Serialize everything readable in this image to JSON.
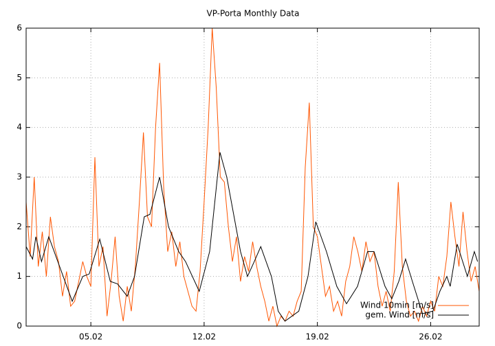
{
  "chart_data": {
    "type": "line",
    "title": "VP-Porta Monthly Data",
    "xlim": [
      1,
      29
    ],
    "ylim": [
      0,
      6
    ],
    "xticks": [
      {
        "value": 5,
        "label": "05.02"
      },
      {
        "value": 12,
        "label": "12.02"
      },
      {
        "value": 19,
        "label": "19.02"
      },
      {
        "value": 26,
        "label": "26.02"
      }
    ],
    "yticks": [
      0,
      1,
      2,
      3,
      4,
      5,
      6
    ],
    "grid": true,
    "legend": "bottom-right",
    "series": [
      {
        "name": "Wind 10min [m/s]",
        "color": "#ff5500",
        "x": [
          1,
          1.25,
          1.5,
          1.75,
          2,
          2.25,
          2.5,
          2.75,
          3,
          3.25,
          3.5,
          3.75,
          4,
          4.25,
          4.5,
          4.75,
          5,
          5.25,
          5.5,
          5.75,
          6,
          6.25,
          6.5,
          6.75,
          7,
          7.25,
          7.5,
          7.75,
          8,
          8.25,
          8.5,
          8.75,
          9,
          9.25,
          9.5,
          9.75,
          10,
          10.25,
          10.5,
          10.75,
          11,
          11.25,
          11.5,
          11.75,
          12,
          12.25,
          12.5,
          12.75,
          13,
          13.25,
          13.5,
          13.75,
          14,
          14.25,
          14.5,
          14.75,
          15,
          15.25,
          15.5,
          15.75,
          16,
          16.25,
          16.5,
          16.75,
          17,
          17.25,
          17.5,
          17.75,
          18,
          18.25,
          18.5,
          18.75,
          19,
          19.25,
          19.5,
          19.75,
          20,
          20.25,
          20.5,
          20.75,
          21,
          21.25,
          21.5,
          21.75,
          22,
          22.25,
          22.5,
          22.75,
          23,
          23.25,
          23.5,
          23.75,
          24,
          24.25,
          24.5,
          24.75,
          25,
          25.25,
          25.5,
          25.75,
          26,
          26.25,
          26.5,
          26.75,
          27,
          27.25,
          27.5,
          27.75,
          28,
          28.25,
          28.5,
          28.75,
          29
        ],
        "values": [
          2.5,
          1.4,
          3.0,
          1.2,
          1.9,
          1.0,
          2.2,
          1.6,
          1.3,
          0.6,
          1.1,
          0.4,
          0.5,
          0.9,
          1.3,
          1.0,
          0.8,
          3.4,
          1.2,
          1.6,
          0.2,
          0.9,
          1.8,
          0.6,
          0.1,
          0.8,
          0.3,
          1.2,
          2.5,
          3.9,
          2.2,
          2.0,
          4.0,
          5.3,
          2.8,
          1.5,
          1.9,
          1.2,
          1.7,
          1.0,
          0.7,
          0.4,
          0.3,
          1.1,
          2.5,
          4.0,
          6.0,
          4.8,
          3.0,
          2.9,
          2.0,
          1.3,
          1.8,
          0.9,
          1.4,
          1.1,
          1.7,
          1.2,
          0.8,
          0.5,
          0.1,
          0.4,
          0.0,
          0.2,
          0.1,
          0.3,
          0.2,
          0.5,
          0.7,
          3.2,
          4.5,
          2.0,
          1.8,
          1.2,
          0.6,
          0.8,
          0.3,
          0.5,
          0.2,
          0.9,
          1.2,
          1.8,
          1.5,
          1.1,
          1.7,
          1.3,
          1.5,
          0.8,
          0.4,
          0.7,
          0.3,
          1.1,
          2.9,
          1.2,
          0.5,
          0.2,
          0.3,
          0.1,
          0.4,
          0.2,
          0.5,
          0.3,
          1.0,
          0.8,
          1.4,
          2.5,
          1.8,
          1.2,
          2.3,
          1.5,
          0.9,
          1.2,
          0.7
        ]
      },
      {
        "name": "gem. Wind [m/s]",
        "color": "#000000",
        "x": [
          1,
          1.4,
          1.6,
          1.95,
          2.4,
          3.85,
          4.5,
          4.9,
          5.55,
          6.2,
          6.65,
          7.25,
          7.7,
          8.3,
          8.65,
          9.25,
          9.8,
          10.43,
          10.85,
          11.7,
          12.34,
          12.98,
          13.4,
          14.25,
          14.68,
          15.1,
          15.5,
          16.16,
          16.58,
          17.0,
          17.85,
          18.42,
          18.9,
          19.56,
          20.2,
          20.8,
          21.48,
          22.1,
          22.5,
          23.18,
          23.6,
          24.03,
          24.45,
          24.87,
          25.5,
          26.14,
          26.57,
          27.0,
          27.21,
          27.64,
          28.27,
          28.7,
          28.9
        ],
        "values": [
          1.6,
          1.35,
          1.8,
          1.3,
          1.8,
          0.5,
          1.0,
          1.05,
          1.75,
          0.9,
          0.85,
          0.6,
          1.0,
          2.2,
          2.25,
          3.0,
          2.0,
          1.5,
          1.3,
          0.7,
          1.5,
          3.5,
          3.0,
          1.5,
          1.0,
          1.3,
          1.6,
          1.0,
          0.3,
          0.1,
          0.3,
          1.0,
          2.1,
          1.5,
          0.8,
          0.45,
          0.8,
          1.5,
          1.5,
          0.8,
          0.55,
          0.9,
          1.35,
          0.9,
          0.25,
          0.3,
          0.7,
          1.0,
          0.8,
          1.65,
          1.0,
          1.5,
          1.3
        ]
      }
    ]
  }
}
